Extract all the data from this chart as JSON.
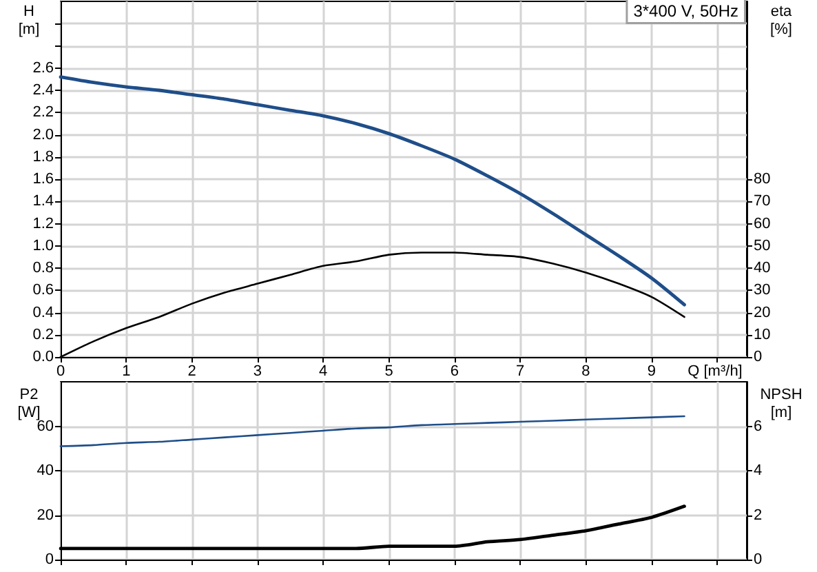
{
  "chart_data": [
    {
      "type": "line",
      "xlabel": "Q [m³/h]",
      "ylabel": "H\n[m]",
      "y2label": "eta\n[%]",
      "annotations": [
        "3*400 V, 50Hz"
      ],
      "xlim": [
        0,
        10.45
      ],
      "xticks": [
        0,
        1,
        2,
        3,
        4,
        5,
        6,
        7,
        8,
        9,
        {
          "value": 10,
          "label": null
        }
      ],
      "ylim": [
        0,
        3.2
      ],
      "yticks": [
        {
          "value": 0,
          "label": "0.0"
        },
        0.2,
        0.4,
        0.6,
        0.8,
        {
          "value": 1,
          "label": "1.0"
        },
        1.2,
        1.4,
        1.6,
        1.8,
        {
          "value": 2,
          "label": "2.0"
        },
        2.2,
        2.4,
        2.6,
        {
          "value": 2.8,
          "label": null
        },
        {
          "value": 3,
          "label": null
        }
      ],
      "y2lim": [
        0,
        160
      ],
      "y2ticks": [
        0,
        10,
        20,
        30,
        40,
        50,
        60,
        70,
        80
      ],
      "grid": true,
      "marker": "none",
      "x": [
        0,
        0.5,
        1,
        1.5,
        2,
        2.5,
        3,
        3.5,
        4,
        4.5,
        5,
        5.5,
        6,
        6.5,
        7,
        7.5,
        8,
        8.5,
        9,
        9.5
      ],
      "series": [
        {
          "color": "#1f4e89",
          "values": [
            2.52,
            2.47,
            2.43,
            2.4,
            2.36,
            2.32,
            2.27,
            2.22,
            2.17,
            2.1,
            2.01,
            1.9,
            1.78,
            1.63,
            1.47,
            1.29,
            1.1,
            0.91,
            0.71,
            0.47
          ]
        },
        {
          "color": "#000000",
          "axis": "y2",
          "values": [
            0,
            7,
            13,
            18,
            24,
            29,
            33,
            37,
            41,
            43,
            46,
            47,
            47,
            46,
            45,
            42,
            38,
            33,
            27,
            18
          ]
        }
      ]
    },
    {
      "type": "line",
      "ylabel": "P2\n[W]",
      "y2label": "NPSH\n[m]",
      "xlim": [
        0,
        10.45
      ],
      "xticks": [
        0,
        1,
        2,
        3,
        4,
        5,
        6,
        7,
        8,
        9,
        10
      ],
      "tick_labels": "y",
      "ylim": [
        0,
        80
      ],
      "yticks": [
        0,
        20,
        40,
        60
      ],
      "y2lim": [
        0,
        8
      ],
      "y2ticks": [
        0,
        2,
        4,
        6
      ],
      "grid": true,
      "marker": "none",
      "x": [
        0,
        0.5,
        1,
        1.5,
        2,
        2.5,
        3,
        3.5,
        4,
        4.5,
        5,
        5.5,
        6,
        6.5,
        7,
        7.5,
        8,
        8.5,
        9,
        9.5
      ],
      "series": [
        {
          "color": "#1f4e89",
          "values": [
            51,
            51.5,
            52.5,
            53,
            54,
            55,
            56,
            57,
            58,
            59,
            59.5,
            60.5,
            61,
            61.5,
            62,
            62.5,
            63,
            63.5,
            64,
            64.5
          ]
        },
        {
          "color": "#000000",
          "axis": "y2",
          "values": [
            0.5,
            0.5,
            0.5,
            0.5,
            0.5,
            0.5,
            0.5,
            0.5,
            0.5,
            0.5,
            0.6,
            0.6,
            0.6,
            0.8,
            0.9,
            1.1,
            1.3,
            1.6,
            1.9,
            2.4
          ]
        }
      ]
    }
  ]
}
